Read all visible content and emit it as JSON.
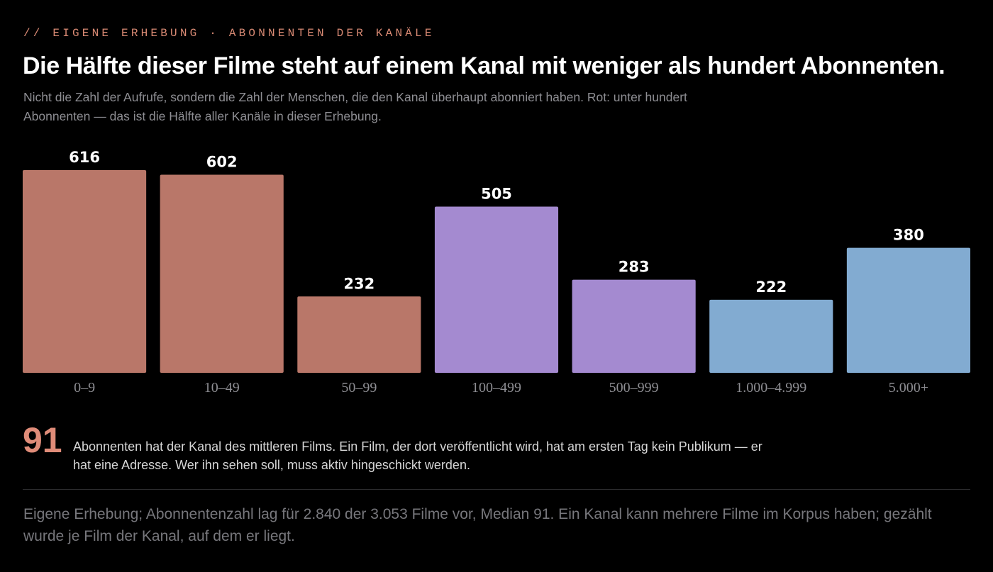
{
  "header": {
    "kicker": "// EIGENE ERHEBUNG · ABONNENTEN DER KANÄLE",
    "title": "Die Hälfte dieser Filme steht auf einem Kanal mit weniger als hundert Abonnenten.",
    "subtitle": "Nicht die Zahl der Aufrufe, sondern die Zahl der Menschen, die den Kanal überhaupt abonniert haben. Rot: unter hundert Abonnenten — das ist die Hälfte aller Kanäle in dieser Erhebung."
  },
  "chart_data": {
    "type": "bar",
    "categories": [
      "0–9",
      "10–49",
      "50–99",
      "100–499",
      "500–999",
      "1.000–4.999",
      "5.000+"
    ],
    "values": [
      616,
      602,
      232,
      505,
      283,
      222,
      380
    ],
    "colors": [
      "#b97769",
      "#b97769",
      "#b97769",
      "#a48ad0",
      "#a48ad0",
      "#82abd1",
      "#82abd1"
    ],
    "value_labels": [
      "616",
      "602",
      "232",
      "505",
      "283",
      "222",
      "380"
    ],
    "ylim": [
      0,
      616
    ],
    "grid": false,
    "title": "",
    "xlabel": "",
    "ylabel": ""
  },
  "stat": {
    "number": "91",
    "text": "Abonnenten hat der Kanal des mittleren Films. Ein Film, der dort veröffentlicht wird, hat am ersten Tag kein Publikum — er hat eine Adresse. Wer ihn sehen soll, muss aktiv hingeschickt werden."
  },
  "footnote": "Eigene Erhebung; Abonnentenzahl lag für 2.840 der 3.053 Filme vor, Median 91. Ein Kanal kann mehrere Filme im Korpus haben; gezählt wurde je Film der Kanal, auf dem er liegt.",
  "colors": {
    "background": "#000000",
    "accent": "#e08c79",
    "muted_text": "#8e8e93"
  }
}
